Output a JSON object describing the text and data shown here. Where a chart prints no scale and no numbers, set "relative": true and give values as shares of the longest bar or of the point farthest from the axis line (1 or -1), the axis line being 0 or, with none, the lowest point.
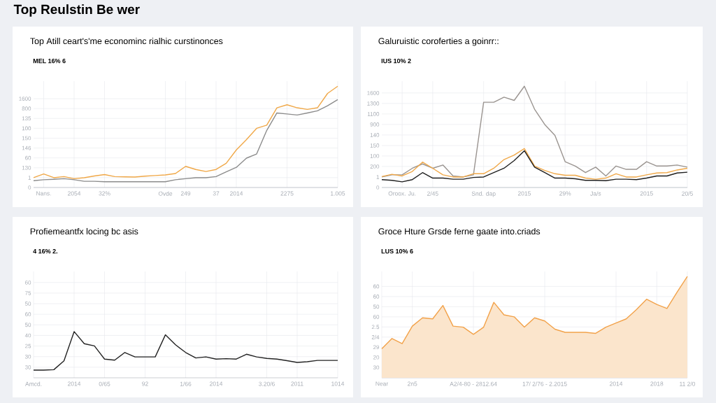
{
  "chart_data": [
    {
      "type": "other",
      "title": "Top Reulstin Be wer"
    },
    {
      "type": "line",
      "title": "Top Atill ceart's'me econominc rialhic curstinonces",
      "subtitle": "MEL 16% 6",
      "relative": true,
      "grid": true,
      "annotations": [
        "1600",
        "800",
        "135",
        "100",
        "150",
        "146",
        "60",
        "130",
        "1",
        "0"
      ],
      "categories": [
        null,
        "Nans.",
        null,
        null,
        "2054",
        null,
        null,
        "32%",
        null,
        null,
        null,
        null,
        null,
        "Ovde",
        null,
        "249",
        null,
        null,
        "37",
        null,
        "2014",
        null,
        null,
        null,
        null,
        "2275",
        null,
        null,
        null,
        null,
        "1.005"
      ],
      "series": [
        {
          "color": "#f0a848",
          "values": [
            0.097,
            0.134,
            0.097,
            0.108,
            0.087,
            0.097,
            0.114,
            0.128,
            0.108,
            0.105,
            0.103,
            0.112,
            0.118,
            0.124,
            0.138,
            0.209,
            0.178,
            0.158,
            0.178,
            0.239,
            0.371,
            0.473,
            0.584,
            0.615,
            0.787,
            0.817,
            0.787,
            0.771,
            0.787,
            0.929,
            1
          ]
        },
        {
          "color": "#8c8c8c",
          "values": [
            0.067,
            0.077,
            0.081,
            0.087,
            0.077,
            0.061,
            0.061,
            0.057,
            0.057,
            0.057,
            0.057,
            0.057,
            0.057,
            0.057,
            0.077,
            0.087,
            0.097,
            0.097,
            0.108,
            0.154,
            0.199,
            0.29,
            0.331,
            0.564,
            0.736,
            0.726,
            0.716,
            0.736,
            0.757,
            0.807,
            0.868
          ]
        }
      ]
    },
    {
      "type": "line",
      "title": "Galuruistic coroferties a goinrr::",
      "subtitle": "IUS 10% 2",
      "relative": true,
      "grid": true,
      "annotations": [
        "1600",
        "1300",
        "1100",
        "900",
        "140",
        "150",
        "100",
        "200",
        "1",
        "0"
      ],
      "categories": [
        null,
        null,
        "Oroox. Ju.",
        null,
        null,
        "2/45",
        null,
        null,
        null,
        null,
        "Snd. dap",
        null,
        null,
        null,
        "2015",
        null,
        null,
        null,
        "29%",
        null,
        null,
        "Ja/s",
        null,
        null,
        null,
        null,
        "2015",
        null,
        null,
        null,
        "20/5"
      ],
      "series": [
        {
          "color": "#9a9490",
          "values": [
            0.104,
            0.125,
            0.125,
            0.19,
            0.233,
            0.19,
            0.222,
            0.114,
            0.104,
            0.125,
            0.842,
            0.842,
            0.892,
            0.86,
            1,
            0.773,
            0.622,
            0.514,
            0.255,
            0.212,
            0.147,
            0.201,
            0.114,
            0.212,
            0.179,
            0.179,
            0.255,
            0.212,
            0.212,
            0.222,
            0.201
          ]
        },
        {
          "color": "#f0a848",
          "values": [
            0.108,
            0.13,
            0.114,
            0.158,
            0.251,
            0.19,
            0.125,
            0.104,
            0.104,
            0.136,
            0.136,
            0.19,
            0.276,
            0.32,
            0.384,
            0.212,
            0.168,
            0.136,
            0.121,
            0.121,
            0.093,
            0.082,
            0.093,
            0.136,
            0.104,
            0.104,
            0.125,
            0.143,
            0.147,
            0.173,
            0.19
          ]
        },
        {
          "color": "#1e1e1e",
          "values": [
            0.078,
            0.071,
            0.056,
            0.078,
            0.147,
            0.093,
            0.093,
            0.082,
            0.082,
            0.099,
            0.104,
            0.147,
            0.19,
            0.266,
            0.363,
            0.201,
            0.147,
            0.093,
            0.093,
            0.086,
            0.071,
            0.071,
            0.067,
            0.082,
            0.082,
            0.078,
            0.093,
            0.114,
            0.114,
            0.143,
            0.151
          ]
        }
      ]
    },
    {
      "type": "line",
      "title": "Profiemeantfx locing bc asis",
      "subtitle": "4 16% 2.",
      "relative": true,
      "grid": true,
      "annotations": [
        "60",
        "75",
        "50",
        "60",
        "50",
        "40",
        "25",
        "30",
        "30"
      ],
      "categories": [
        "Amcd.",
        null,
        null,
        null,
        "2014",
        null,
        null,
        "0/65",
        null,
        null,
        null,
        "92",
        null,
        null,
        null,
        "1/66",
        null,
        null,
        "2014",
        null,
        null,
        null,
        null,
        "3.20/6",
        null,
        null,
        "2011",
        null,
        null,
        null,
        "1014"
      ],
      "series": [
        {
          "color": "#222222",
          "values": [
            0.167,
            0.167,
            0.176,
            0.367,
            1,
            0.738,
            0.69,
            0.405,
            0.381,
            0.548,
            0.452,
            0.452,
            0.452,
            0.929,
            0.714,
            0.548,
            0.429,
            0.452,
            0.405,
            0.414,
            0.405,
            0.51,
            0.452,
            0.419,
            0.405,
            0.371,
            0.333,
            0.348,
            0.376,
            0.376,
            0.376
          ]
        }
      ]
    },
    {
      "type": "area",
      "title": "Groce Hture Grsde ferne gaate into.criads",
      "subtitle": "LUS 10% 6",
      "relative": true,
      "grid": true,
      "annotations": [
        "60",
        "60",
        "50",
        "60",
        "2.5",
        "2/4",
        "29",
        "20",
        "30"
      ],
      "categories": [
        "Near",
        null,
        null,
        "2n5",
        null,
        null,
        null,
        null,
        null,
        "A2/4-80 - 2812.64",
        null,
        null,
        null,
        null,
        null,
        null,
        "17/ 2/76 - 2.2015",
        null,
        null,
        null,
        null,
        null,
        null,
        "2014",
        null,
        null,
        null,
        "2018",
        null,
        null,
        "11 2/0"
      ],
      "series": [
        {
          "color": "#f2a24a",
          "values": [
            0.286,
            0.388,
            0.337,
            0.51,
            0.592,
            0.582,
            0.714,
            0.51,
            0.5,
            0.429,
            0.5,
            0.745,
            0.622,
            0.602,
            0.5,
            0.592,
            0.561,
            0.48,
            0.449,
            0.449,
            0.449,
            0.439,
            0.5,
            0.541,
            0.582,
            0.673,
            0.776,
            0.724,
            0.684,
            0.847,
            1
          ]
        }
      ]
    }
  ]
}
